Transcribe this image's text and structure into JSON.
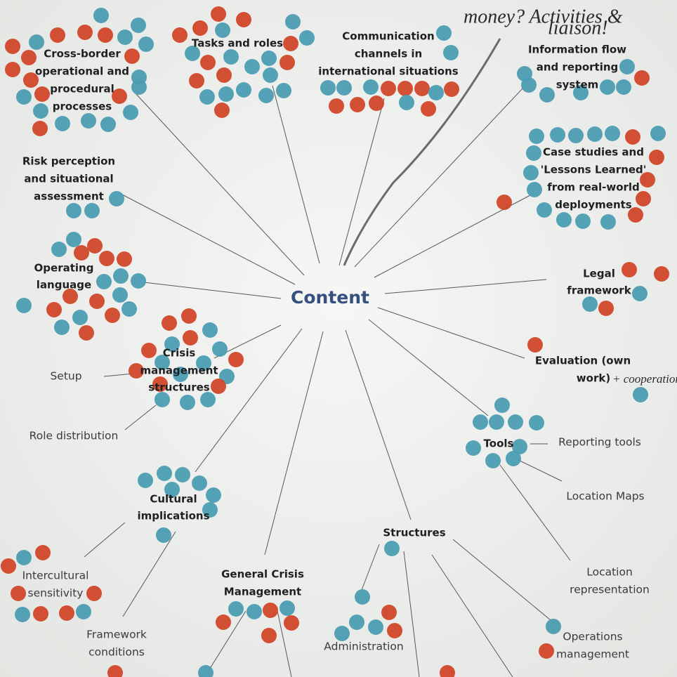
{
  "center_label": "Content",
  "nodes": [
    {
      "lines": [
        "Cross-border",
        "operational and",
        "procedural",
        "processes"
      ]
    },
    {
      "lines": [
        "Tasks and roles"
      ]
    },
    {
      "lines": [
        "Communication",
        "channels in",
        "international situations"
      ]
    },
    {
      "lines": [
        "Information flow",
        "and reporting",
        "system"
      ]
    },
    {
      "lines": [
        "Case studies and",
        "'Lessons Learned'",
        "from real-world",
        "deployments"
      ]
    },
    {
      "lines": [
        "Risk perception",
        "and situational",
        "assessment"
      ]
    },
    {
      "lines": [
        "Operating",
        "language"
      ]
    },
    {
      "lines": [
        "Legal",
        "framework"
      ]
    },
    {
      "lines": [
        "Evaluation (own",
        "work)"
      ]
    },
    {
      "lines": [
        "Crisis",
        "management",
        "structures"
      ]
    },
    {
      "lines": [
        "Tools"
      ]
    },
    {
      "lines": [
        "Cultural",
        "implications"
      ]
    },
    {
      "lines": [
        "General Crisis",
        "Management"
      ]
    },
    {
      "lines": [
        "Structures"
      ]
    }
  ],
  "sub_items": [
    {
      "lines": [
        "Setup"
      ]
    },
    {
      "lines": [
        "Role distribution"
      ]
    },
    {
      "lines": [
        "Reporting tools"
      ]
    },
    {
      "lines": [
        "Location Maps"
      ]
    },
    {
      "lines": [
        "Location",
        "representation"
      ]
    },
    {
      "lines": [
        "Intercultural",
        "sensitivity"
      ]
    },
    {
      "lines": [
        "Framework",
        "conditions"
      ]
    },
    {
      "lines": [
        "Administration"
      ]
    },
    {
      "lines": [
        "Operations",
        "management"
      ]
    }
  ],
  "annotations": [
    "money? Activities &",
    "liaison!",
    "+ cooperation"
  ]
}
